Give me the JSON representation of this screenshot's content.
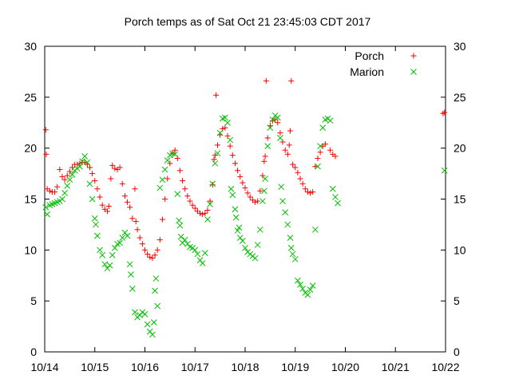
{
  "chart_data": {
    "type": "scatter",
    "title": "Porch temps as of Sat Oct 21 23:45:03 CDT 2017",
    "xlabel": "",
    "ylabel": "",
    "x_tick_labels": [
      "10/14",
      "10/15",
      "10/16",
      "10/17",
      "10/18",
      "10/19",
      "10/20",
      "10/21",
      "10/22"
    ],
    "xlim": [
      0,
      8
    ],
    "ylim": [
      0,
      30
    ],
    "y_ticks": [
      0,
      5,
      10,
      15,
      20,
      25,
      30
    ],
    "y_axes": "left-and-right",
    "grid": false,
    "legend_position": "top-right",
    "series": [
      {
        "name": "Porch",
        "marker": "plus",
        "color": "#ff0000",
        "points": [
          [
            0.02,
            21.8
          ],
          [
            0.03,
            19.4
          ],
          [
            0.05,
            16.0
          ],
          [
            0.1,
            15.8
          ],
          [
            0.15,
            15.7
          ],
          [
            0.2,
            15.7
          ],
          [
            0.25,
            16.2
          ],
          [
            0.3,
            17.9
          ],
          [
            0.35,
            17.2
          ],
          [
            0.4,
            16.9
          ],
          [
            0.45,
            17.3
          ],
          [
            0.5,
            17.7
          ],
          [
            0.55,
            18.1
          ],
          [
            0.6,
            18.4
          ],
          [
            0.65,
            18.4
          ],
          [
            0.7,
            18.5
          ],
          [
            0.75,
            18.6
          ],
          [
            0.8,
            18.6
          ],
          [
            0.85,
            18.4
          ],
          [
            0.9,
            18.1
          ],
          [
            0.95,
            17.5
          ],
          [
            1.0,
            16.8
          ],
          [
            1.05,
            16.0
          ],
          [
            1.1,
            15.2
          ],
          [
            1.15,
            14.4
          ],
          [
            1.2,
            14.0
          ],
          [
            1.25,
            13.8
          ],
          [
            1.28,
            14.3
          ],
          [
            1.32,
            17.0
          ],
          [
            1.35,
            18.3
          ],
          [
            1.4,
            18.0
          ],
          [
            1.45,
            17.9
          ],
          [
            1.5,
            18.1
          ],
          [
            1.55,
            16.5
          ],
          [
            1.6,
            15.3
          ],
          [
            1.65,
            14.7
          ],
          [
            1.7,
            14.2
          ],
          [
            1.75,
            13.1
          ],
          [
            1.8,
            16.0
          ],
          [
            1.82,
            12.8
          ],
          [
            1.85,
            12.0
          ],
          [
            1.9,
            11.2
          ],
          [
            1.95,
            10.6
          ],
          [
            2.0,
            10.0
          ],
          [
            2.05,
            9.6
          ],
          [
            2.1,
            9.3
          ],
          [
            2.15,
            9.2
          ],
          [
            2.2,
            9.5
          ],
          [
            2.25,
            10.0
          ],
          [
            2.3,
            11.0
          ],
          [
            2.35,
            13.0
          ],
          [
            2.4,
            15.0
          ],
          [
            2.45,
            17.0
          ],
          [
            2.5,
            18.5
          ],
          [
            2.55,
            19.5
          ],
          [
            2.6,
            19.8
          ],
          [
            2.65,
            19.0
          ],
          [
            2.7,
            17.8
          ],
          [
            2.75,
            16.8
          ],
          [
            2.8,
            16.0
          ],
          [
            2.85,
            15.3
          ],
          [
            2.9,
            14.8
          ],
          [
            2.95,
            14.4
          ],
          [
            3.0,
            14.1
          ],
          [
            3.05,
            13.8
          ],
          [
            3.1,
            13.6
          ],
          [
            3.15,
            13.5
          ],
          [
            3.2,
            13.6
          ],
          [
            3.25,
            13.9
          ],
          [
            3.3,
            14.8
          ],
          [
            3.35,
            16.4
          ],
          [
            3.38,
            18.9
          ],
          [
            3.4,
            19.3
          ],
          [
            3.42,
            25.2
          ],
          [
            3.45,
            20.3
          ],
          [
            3.5,
            21.3
          ],
          [
            3.55,
            21.9
          ],
          [
            3.6,
            22.0
          ],
          [
            3.65,
            21.2
          ],
          [
            3.7,
            20.2
          ],
          [
            3.75,
            19.3
          ],
          [
            3.8,
            18.5
          ],
          [
            3.85,
            17.8
          ],
          [
            3.9,
            17.2
          ],
          [
            3.95,
            16.6
          ],
          [
            4.0,
            16.1
          ],
          [
            4.05,
            15.6
          ],
          [
            4.1,
            15.2
          ],
          [
            4.15,
            14.9
          ],
          [
            4.2,
            14.7
          ],
          [
            4.25,
            14.8
          ],
          [
            4.3,
            15.8
          ],
          [
            4.35,
            17.3
          ],
          [
            4.38,
            18.7
          ],
          [
            4.4,
            19.2
          ],
          [
            4.42,
            26.6
          ],
          [
            4.45,
            21.0
          ],
          [
            4.5,
            22.2
          ],
          [
            4.55,
            22.7
          ],
          [
            4.6,
            22.8
          ],
          [
            4.65,
            22.5
          ],
          [
            4.7,
            21.5
          ],
          [
            4.75,
            20.6
          ],
          [
            4.8,
            19.8
          ],
          [
            4.85,
            19.4
          ],
          [
            4.88,
            20.3
          ],
          [
            4.9,
            21.7
          ],
          [
            4.92,
            26.6
          ],
          [
            4.95,
            18.4
          ],
          [
            5.0,
            18.1
          ],
          [
            5.05,
            17.6
          ],
          [
            5.1,
            17.0
          ],
          [
            5.15,
            16.5
          ],
          [
            5.2,
            16.0
          ],
          [
            5.25,
            15.7
          ],
          [
            5.3,
            15.6
          ],
          [
            5.35,
            15.7
          ],
          [
            5.4,
            18.2
          ],
          [
            5.45,
            19.0
          ],
          [
            5.5,
            19.6
          ],
          [
            5.55,
            20.2
          ],
          [
            5.6,
            20.4
          ],
          [
            5.7,
            19.8
          ],
          [
            5.75,
            19.4
          ],
          [
            5.8,
            19.2
          ],
          [
            7.95,
            23.4
          ],
          [
            7.98,
            23.5
          ]
        ]
      },
      {
        "name": "Marion",
        "marker": "cross",
        "color": "#00c000",
        "points": [
          [
            0.02,
            14.2
          ],
          [
            0.05,
            13.5
          ],
          [
            0.1,
            14.4
          ],
          [
            0.15,
            14.5
          ],
          [
            0.2,
            14.6
          ],
          [
            0.25,
            14.7
          ],
          [
            0.3,
            14.8
          ],
          [
            0.35,
            15.0
          ],
          [
            0.4,
            15.6
          ],
          [
            0.45,
            16.3
          ],
          [
            0.5,
            16.9
          ],
          [
            0.55,
            17.4
          ],
          [
            0.6,
            17.8
          ],
          [
            0.65,
            18.0
          ],
          [
            0.7,
            18.2
          ],
          [
            0.75,
            18.7
          ],
          [
            0.8,
            19.2
          ],
          [
            0.85,
            18.6
          ],
          [
            0.9,
            16.5
          ],
          [
            0.95,
            15.0
          ],
          [
            1.0,
            13.1
          ],
          [
            1.02,
            12.5
          ],
          [
            1.05,
            11.4
          ],
          [
            1.1,
            10.0
          ],
          [
            1.15,
            9.5
          ],
          [
            1.2,
            8.6
          ],
          [
            1.25,
            8.2
          ],
          [
            1.3,
            8.5
          ],
          [
            1.35,
            9.5
          ],
          [
            1.4,
            10.2
          ],
          [
            1.45,
            10.6
          ],
          [
            1.5,
            10.7
          ],
          [
            1.55,
            11.2
          ],
          [
            1.6,
            11.7
          ],
          [
            1.65,
            11.4
          ],
          [
            1.7,
            8.6
          ],
          [
            1.72,
            7.6
          ],
          [
            1.75,
            6.2
          ],
          [
            1.8,
            3.9
          ],
          [
            1.85,
            3.4
          ],
          [
            1.9,
            3.6
          ],
          [
            1.95,
            3.9
          ],
          [
            2.0,
            3.7
          ],
          [
            2.05,
            2.7
          ],
          [
            2.1,
            2.0
          ],
          [
            2.15,
            1.7
          ],
          [
            2.18,
            2.9
          ],
          [
            2.2,
            6.0
          ],
          [
            2.22,
            7.2
          ],
          [
            2.25,
            4.5
          ],
          [
            2.3,
            16.1
          ],
          [
            2.35,
            16.9
          ],
          [
            2.4,
            17.9
          ],
          [
            2.45,
            18.8
          ],
          [
            2.5,
            19.3
          ],
          [
            2.55,
            19.5
          ],
          [
            2.6,
            19.4
          ],
          [
            2.65,
            15.5
          ],
          [
            2.68,
            12.9
          ],
          [
            2.7,
            12.4
          ],
          [
            2.72,
            11.3
          ],
          [
            2.75,
            10.7
          ],
          [
            2.8,
            11.0
          ],
          [
            2.85,
            10.6
          ],
          [
            2.9,
            10.3
          ],
          [
            2.95,
            10.2
          ],
          [
            3.0,
            10.0
          ],
          [
            3.05,
            9.6
          ],
          [
            3.1,
            9.0
          ],
          [
            3.15,
            8.7
          ],
          [
            3.2,
            9.7
          ],
          [
            3.25,
            13.0
          ],
          [
            3.3,
            14.5
          ],
          [
            3.35,
            16.5
          ],
          [
            3.4,
            18.5
          ],
          [
            3.45,
            19.5
          ],
          [
            3.5,
            21.5
          ],
          [
            3.55,
            22.9
          ],
          [
            3.6,
            23.0
          ],
          [
            3.65,
            22.5
          ],
          [
            3.7,
            20.8
          ],
          [
            3.72,
            16.0
          ],
          [
            3.75,
            15.4
          ],
          [
            3.8,
            14.0
          ],
          [
            3.82,
            13.2
          ],
          [
            3.85,
            11.9
          ],
          [
            3.88,
            12.2
          ],
          [
            3.9,
            11.2
          ],
          [
            3.95,
            10.9
          ],
          [
            4.0,
            10.2
          ],
          [
            4.05,
            9.8
          ],
          [
            4.1,
            9.6
          ],
          [
            4.15,
            9.4
          ],
          [
            4.2,
            9.2
          ],
          [
            4.25,
            10.5
          ],
          [
            4.3,
            12.0
          ],
          [
            4.35,
            14.8
          ],
          [
            4.38,
            15.8
          ],
          [
            4.4,
            17.0
          ],
          [
            4.45,
            20.2
          ],
          [
            4.5,
            22.0
          ],
          [
            4.55,
            22.8
          ],
          [
            4.6,
            23.2
          ],
          [
            4.65,
            23.0
          ],
          [
            4.7,
            21.0
          ],
          [
            4.72,
            16.2
          ],
          [
            4.75,
            14.8
          ],
          [
            4.8,
            13.7
          ],
          [
            4.85,
            12.5
          ],
          [
            4.9,
            11.2
          ],
          [
            4.92,
            10.2
          ],
          [
            4.95,
            9.6
          ],
          [
            5.0,
            9.1
          ],
          [
            5.05,
            7.0
          ],
          [
            5.1,
            6.6
          ],
          [
            5.15,
            6.2
          ],
          [
            5.2,
            5.8
          ],
          [
            5.25,
            5.6
          ],
          [
            5.3,
            6.1
          ],
          [
            5.35,
            6.5
          ],
          [
            5.4,
            12.0
          ],
          [
            5.45,
            18.2
          ],
          [
            5.5,
            20.2
          ],
          [
            5.55,
            22.0
          ],
          [
            5.6,
            22.8
          ],
          [
            5.65,
            22.9
          ],
          [
            5.7,
            22.7
          ],
          [
            5.75,
            16.0
          ],
          [
            5.8,
            15.2
          ],
          [
            5.85,
            14.6
          ],
          [
            7.98,
            17.8
          ]
        ]
      }
    ]
  }
}
